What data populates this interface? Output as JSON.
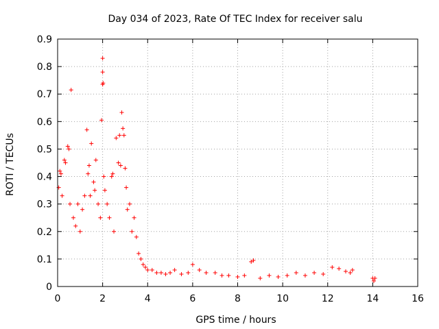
{
  "chart_data": {
    "type": "scatter",
    "title": "Day 034 of 2023, Rate Of TEC Index for receiver salu",
    "xlabel": "GPS time / hours",
    "ylabel": "ROTI / TECUs",
    "xlim": [
      0,
      16
    ],
    "ylim": [
      0,
      0.9
    ],
    "xticks": [
      0,
      2,
      4,
      6,
      8,
      10,
      12,
      14,
      16
    ],
    "yticks": [
      0,
      0.1,
      0.2,
      0.3,
      0.4,
      0.5,
      0.6,
      0.7,
      0.8,
      0.9
    ],
    "xtick_labels": [
      "0",
      "2",
      "4",
      "6",
      "8",
      "10",
      "12",
      "14",
      "16"
    ],
    "ytick_labels": [
      "0",
      "0.1",
      "0.2",
      "0.3",
      "0.4",
      "0.5",
      "0.6",
      "0.7",
      "0.8",
      "0.9"
    ],
    "grid": true,
    "marker": "+",
    "color": "#ff0000",
    "series": [
      {
        "name": "ROTI",
        "x": [
          0.05,
          0.1,
          0.15,
          0.2,
          0.3,
          0.35,
          0.45,
          0.5,
          0.55,
          0.6,
          0.7,
          0.8,
          0.9,
          1.0,
          1.1,
          1.2,
          1.3,
          1.35,
          1.4,
          1.45,
          1.5,
          1.6,
          1.65,
          1.7,
          1.8,
          1.9,
          1.95,
          2.0,
          2.0,
          2.0,
          2.02,
          2.05,
          2.1,
          2.2,
          2.3,
          2.4,
          2.45,
          2.5,
          2.6,
          2.7,
          2.75,
          2.8,
          2.85,
          2.9,
          2.95,
          3.0,
          3.05,
          3.1,
          3.2,
          3.3,
          3.4,
          3.5,
          3.6,
          3.7,
          3.8,
          3.9,
          4.0,
          4.2,
          4.4,
          4.6,
          4.8,
          5.0,
          5.2,
          5.5,
          5.8,
          6.0,
          6.3,
          6.6,
          7.0,
          7.3,
          7.6,
          8.0,
          8.3,
          8.6,
          8.7,
          9.0,
          9.4,
          9.8,
          10.2,
          10.6,
          11.0,
          11.4,
          11.8,
          12.2,
          12.5,
          12.8,
          13.0,
          13.1,
          14.0,
          14.05,
          14.1
        ],
        "y": [
          0.36,
          0.42,
          0.41,
          0.33,
          0.46,
          0.45,
          0.51,
          0.5,
          0.3,
          0.715,
          0.25,
          0.22,
          0.3,
          0.2,
          0.28,
          0.33,
          0.57,
          0.41,
          0.44,
          0.33,
          0.52,
          0.38,
          0.35,
          0.46,
          0.3,
          0.25,
          0.605,
          0.83,
          0.78,
          0.735,
          0.74,
          0.4,
          0.35,
          0.3,
          0.25,
          0.4,
          0.41,
          0.2,
          0.54,
          0.45,
          0.55,
          0.44,
          0.633,
          0.575,
          0.55,
          0.43,
          0.36,
          0.28,
          0.3,
          0.2,
          0.25,
          0.18,
          0.12,
          0.1,
          0.08,
          0.07,
          0.06,
          0.06,
          0.05,
          0.05,
          0.045,
          0.05,
          0.06,
          0.045,
          0.05,
          0.08,
          0.06,
          0.05,
          0.05,
          0.04,
          0.04,
          0.035,
          0.04,
          0.09,
          0.095,
          0.03,
          0.04,
          0.035,
          0.04,
          0.05,
          0.04,
          0.05,
          0.045,
          0.07,
          0.065,
          0.055,
          0.05,
          0.06,
          0.03,
          0.02,
          0.03
        ]
      }
    ]
  }
}
